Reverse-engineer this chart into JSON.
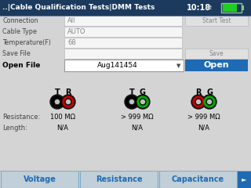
{
  "title_bar": {
    "text": "..|Cable Qualification Tests|DMM Tests",
    "time": "10:18",
    "bg_color": "#1b3a5e",
    "text_color": "#ffffff"
  },
  "bg_color": "#d4d4d4",
  "fields": [
    {
      "label": "Connection",
      "value": "All"
    },
    {
      "label": "Cable Type",
      "value": "AUTO"
    },
    {
      "label": "Temperature(F)",
      "value": "68"
    },
    {
      "label": "Save File",
      "value": ""
    }
  ],
  "open_file_label": "Open File",
  "open_file_value": "Aug141454",
  "btn_start": "Start Test",
  "btn_save": "Save",
  "btn_open_bg": "#1e6ab4",
  "btn_open_text": "Open",
  "measurements": [
    {
      "label1": "T",
      "label2": "R",
      "color1": "#000000",
      "color2": "#cc0000",
      "resistance": "100 MΩ",
      "length": "N/A"
    },
    {
      "label1": "T",
      "label2": "G",
      "color1": "#000000",
      "color2": "#00aa00",
      "resistance": "> 999 MΩ",
      "length": "N/A"
    },
    {
      "label1": "R",
      "label2": "G",
      "color1": "#cc0000",
      "color2": "#00aa00",
      "resistance": "> 999 MΩ",
      "length": "N/A"
    }
  ],
  "tab_texts": [
    "Voltage",
    "Resistance",
    "Capacitance"
  ],
  "tab_fg": "#1e6ab4",
  "tab_bg": "#c0cfd8",
  "tab_border": "#7aaac8",
  "label_color": "#444444",
  "value_color": "#888888",
  "field_box_edge": "#bbbbbb",
  "field_box_face": "#f5f5f5"
}
